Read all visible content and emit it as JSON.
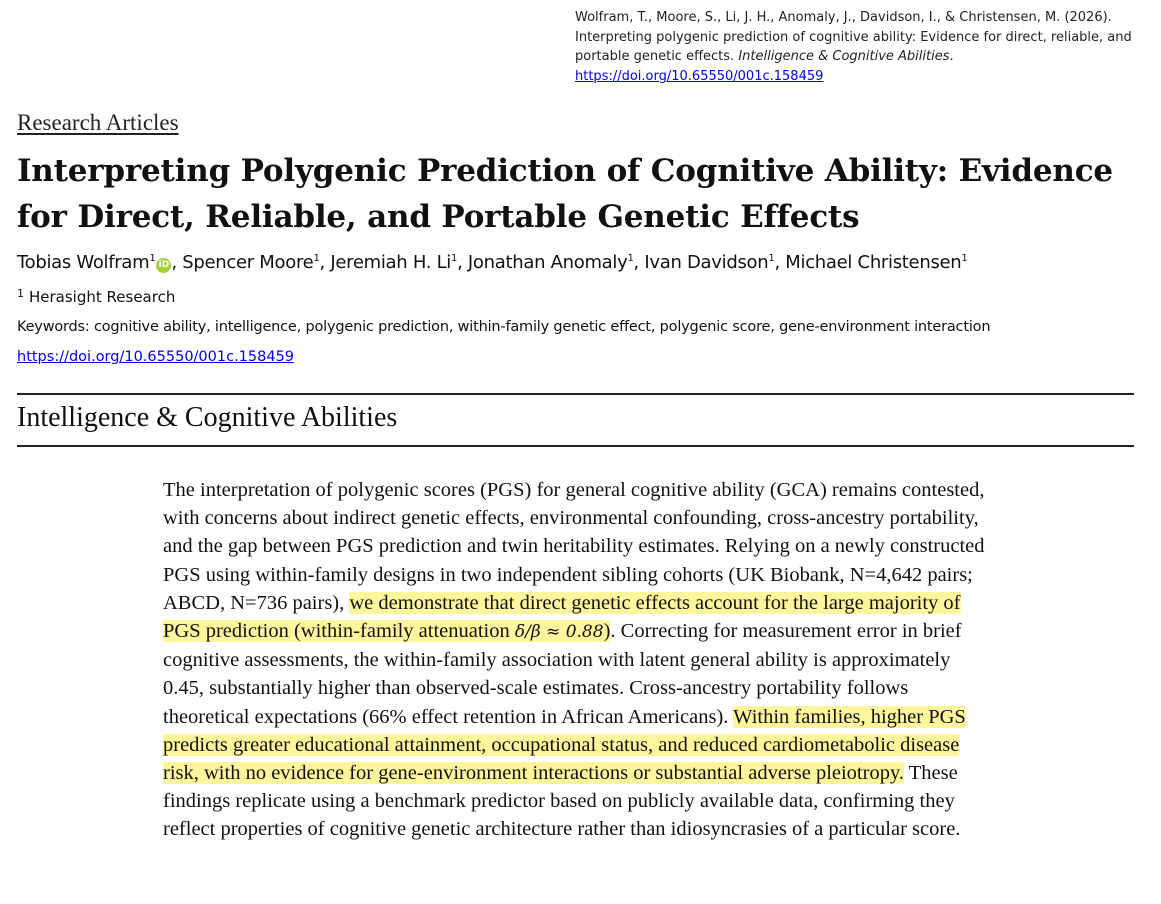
{
  "citation": {
    "authors": "Wolfram, T., Moore, S., Li, J. H., Anomaly, J., Davidson, I., & Christensen, M. (2026).",
    "title": "Interpreting polygenic prediction of cognitive ability: Evidence for direct, reliable, and portable genetic effects.",
    "journal": "Intelligence & Cognitive Abilities",
    "url": "https://doi.org/10.65550/001c.158459"
  },
  "section_tag": "Research Articles",
  "title": "Interpreting Polygenic Prediction of Cognitive Ability: Evidence for Direct, Reliable, and Portable Genetic Effects",
  "authors": [
    {
      "name": "Tobias Wolfram",
      "sup": "1",
      "orcid": true
    },
    {
      "name": "Spencer Moore",
      "sup": "1"
    },
    {
      "name": "Jeremiah H. Li",
      "sup": "1"
    },
    {
      "name": "Jonathan Anomaly",
      "sup": "1"
    },
    {
      "name": "Ivan Davidson",
      "sup": "1"
    },
    {
      "name": "Michael Christensen",
      "sup": "1"
    }
  ],
  "affiliation": {
    "sup": "1",
    "name": "Herasight Research"
  },
  "keywords": "Keywords: cognitive ability, intelligence, polygenic prediction, within-family genetic effect, polygenic score, gene-environment interaction",
  "doi": "https://doi.org/10.65550/001c.158459",
  "journal_banner": "Intelligence & Cognitive Abilities",
  "abstract": {
    "p1": "The interpretation of polygenic scores (PGS) for general cognitive ability (GCA) remains contested, with concerns about indirect genetic effects, environmental confounding, cross-ancestry portability, and the gap between PGS prediction and twin heritability estimates. Relying on a newly constructed PGS using within-family designs in two independent sibling cohorts (UK Biobank, N=4,642 pairs; ABCD, N=736 pairs), ",
    "h1": "we demonstrate that direct genetic effects account for the large majority of PGS prediction (within-family attenuation ",
    "math": "δ/β ≈ 0.88",
    "h1_end": ")",
    "p2": ". Correcting for measurement error in brief cognitive assessments, the within-family association with latent general ability is approximately 0.45, substantially higher than observed-scale estimates. Cross-ancestry portability follows theoretical expectations (66% effect retention in African Americans). ",
    "h2": "Within families, higher PGS predicts greater educational attainment, occupational status, and reduced cardiometabolic disease risk, with no evidence for gene-environment interactions or substantial adverse pleiotropy.",
    "p3": " These findings replicate using a benchmark predictor based on publicly available data, confirming they reflect properties of cognitive genetic architecture rather than idiosyncrasies of a particular score."
  },
  "colors": {
    "highlight": "#fff59d",
    "link": "#0000ee",
    "orcid": "#a6ce39"
  }
}
